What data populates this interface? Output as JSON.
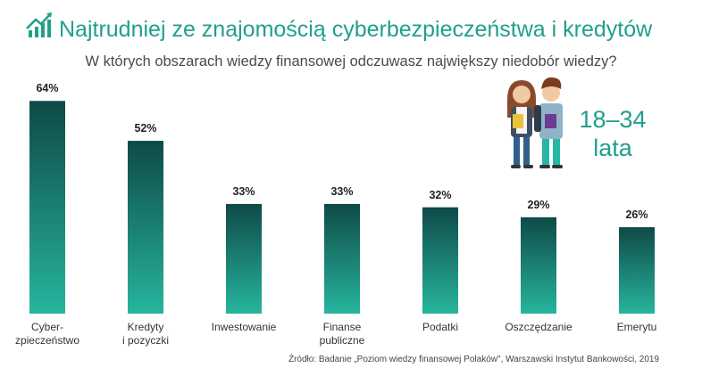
{
  "chart_data": {
    "type": "bar",
    "title": "Najtrudniej ze znajomością cyberbezpieczeństwa i kredytów",
    "subtitle": "W których obszarach wiedzy finansowej odczuwasz największy niedobór wiedzy?",
    "categories": [
      "Cyber-\nzpieczeństwo",
      "Kredyty\ni pozyczki",
      "Inwestowanie",
      "Finanse\npubliczne",
      "Podatki",
      "Oszczędzanie",
      "Emerytu"
    ],
    "values": [
      64,
      52,
      33,
      33,
      32,
      29,
      26
    ],
    "value_labels": [
      "64%",
      "52%",
      "33%",
      "33%",
      "32%",
      "29%",
      "26%"
    ],
    "color": "#0e4a47",
    "age_label": "18–34\nlata",
    "source": "Źródło: Badanie „Poziom wiedzy finansowej Polaków\", Warszawski Instytut Bankowości, 2019"
  }
}
